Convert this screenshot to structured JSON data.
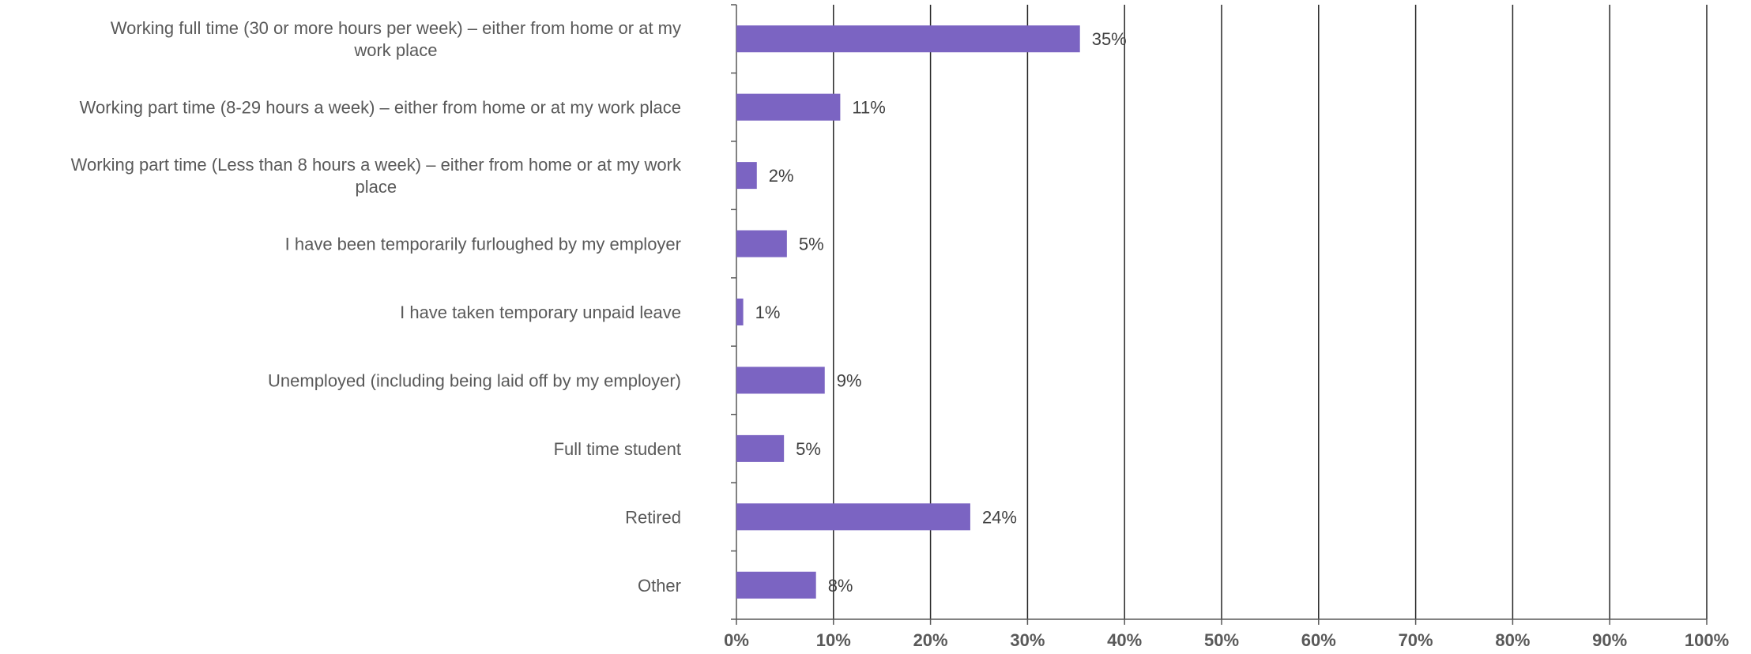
{
  "chart_data": {
    "type": "bar",
    "orientation": "horizontal",
    "categories": [
      "Working full time (30 or more hours per week) – either from home or at my work place",
      "Working part time (8-29 hours a week) – either from home or at my work place",
      "Working part time (Less than 8 hours a week) – either from home or at my work place",
      "I have been temporarily furloughed by my employer",
      "I have taken temporary unpaid leave",
      "Unemployed (including being laid off by my employer)",
      "Full time student",
      "Retired",
      "Other"
    ],
    "category_label_lines": [
      [
        "Working full time (30 or more hours per week) – either from home or at my",
        "work place"
      ],
      [
        "Working part time (8-29 hours a week) – either from home or at my work place"
      ],
      [
        "Working part time (Less than 8 hours a week) – either from home or at my work",
        "place"
      ],
      [
        "I have been temporarily furloughed by my employer"
      ],
      [
        "I have taken temporary unpaid leave"
      ],
      [
        "Unemployed (including being laid off by my employer)"
      ],
      [
        "Full time student"
      ],
      [
        "Retired"
      ],
      [
        "Other"
      ]
    ],
    "values": [
      35.4,
      10.7,
      2.1,
      5.2,
      0.7,
      9.1,
      4.9,
      24.1,
      8.2
    ],
    "data_labels": [
      "35%",
      "11%",
      "2%",
      "5%",
      "1%",
      "9%",
      "5%",
      "24%",
      "8%"
    ],
    "x_ticks": [
      0,
      10,
      20,
      30,
      40,
      50,
      60,
      70,
      80,
      90,
      100
    ],
    "x_tick_labels": [
      "0%",
      "10%",
      "20%",
      "30%",
      "40%",
      "50%",
      "60%",
      "70%",
      "80%",
      "90%",
      "100%"
    ],
    "xlim": [
      0,
      100
    ],
    "grid": true,
    "legend": "none",
    "title": "",
    "xlabel": "",
    "ylabel": "",
    "bar_color": "#7b64c2",
    "grid_color": "#262626",
    "axis_color": "#595959"
  }
}
